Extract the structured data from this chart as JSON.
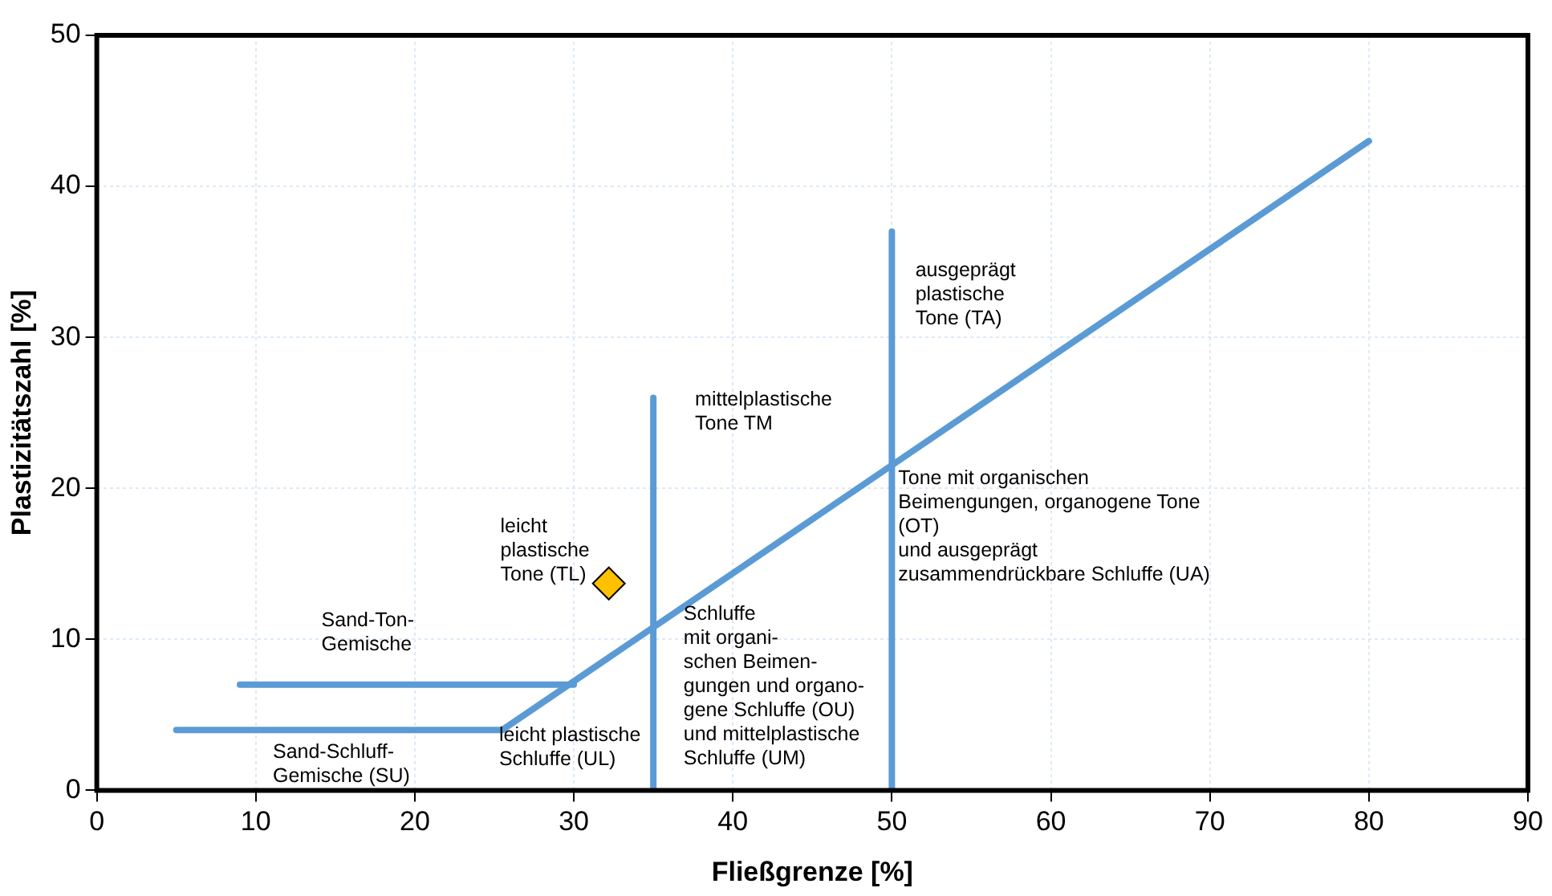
{
  "chart_data": {
    "type": "line",
    "xlabel": "Fließgrenze [%]",
    "ylabel": "Plastizitätszahl [%]",
    "xlim": [
      0,
      90
    ],
    "xticks": [
      0,
      10,
      20,
      30,
      40,
      50,
      60,
      70,
      80,
      90
    ],
    "ylim": [
      0,
      50
    ],
    "yticks": [
      0,
      10,
      20,
      30,
      40,
      50
    ],
    "grid": true,
    "legend": false,
    "marker": "none",
    "line_style": "solid",
    "series": [
      {
        "type": "line",
        "color": "#5b9bd5",
        "x": [
          25.5,
          80
        ],
        "values": [
          4,
          43
        ]
      },
      {
        "type": "line",
        "color": "#5b9bd5",
        "x": [
          5,
          25.5
        ],
        "values": [
          4,
          4
        ]
      },
      {
        "type": "line",
        "color": "#5b9bd5",
        "x": [
          9,
          30
        ],
        "values": [
          7,
          7
        ]
      },
      {
        "type": "line",
        "color": "#5b9bd5",
        "x": [
          35,
          35
        ],
        "values": [
          0,
          26
        ]
      },
      {
        "type": "line",
        "color": "#5b9bd5",
        "x": [
          50,
          50
        ],
        "values": [
          0,
          37
        ]
      },
      {
        "type": "scatter",
        "color": "#ffc000",
        "marker": "diamond",
        "x": [
          32.2
        ],
        "values": [
          13.7
        ]
      }
    ],
    "annotations": [
      "leicht\nplastische\nTone (TL)",
      "mittelplastische\nTone TM",
      "ausgeprägt\nplastische\nTone (TA)",
      {
        "text": "Tone mit organischen\nBeimengungen, organogene Tone\n(OT)\nund ausgeprägt\nzusammendrückbare Schluffe (UA)",
        "x": 50.4,
        "y": 21.3
      },
      {
        "text": "Schluffe\nmit organi-\nschen Beimen-\ngungen und organo-\ngene Schluffe (OU)\nund mittelplastische\nSchluffe (UM)",
        "x": 36.9,
        "y": 12.3
      },
      "Sand-Ton-\nGemische",
      {
        "text": "leicht plastische\nSchluffe (UL)",
        "x": 25.3,
        "y": 4.3
      },
      "Sand-Schluff-\nGemische (SU)"
    ]
  }
}
